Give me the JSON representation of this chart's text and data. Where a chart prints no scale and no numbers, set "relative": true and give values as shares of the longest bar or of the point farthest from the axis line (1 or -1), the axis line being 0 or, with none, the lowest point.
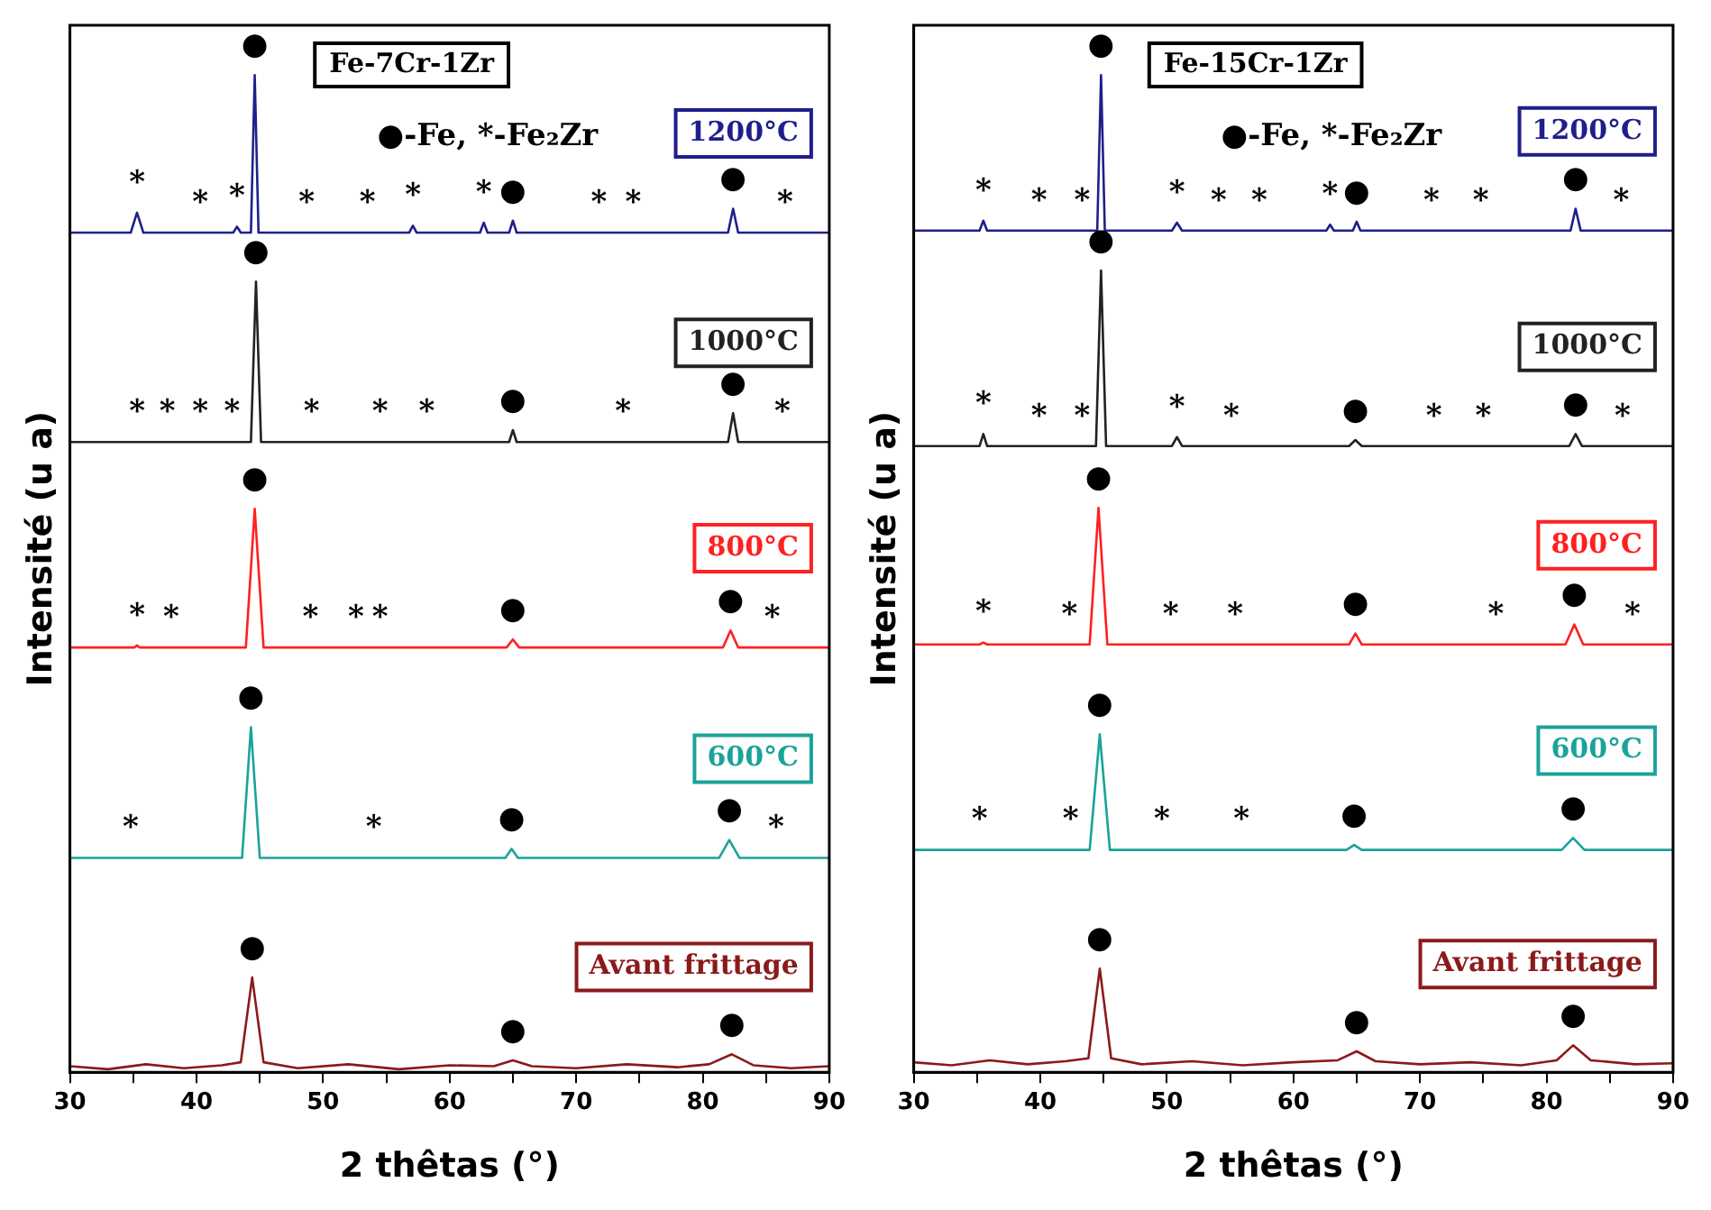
{
  "chart_data": [
    {
      "type": "line",
      "title": "Fe-7Cr-1Zr",
      "xlabel": "2 thêtas (°)",
      "ylabel": "Intensité (u a)",
      "relative": true,
      "xlim": [
        30,
        90
      ],
      "xticks": [
        30,
        {
          "value": 35,
          "label": null
        },
        40,
        {
          "value": 45,
          "label": null
        },
        50,
        {
          "value": 55,
          "label": null
        },
        60,
        {
          "value": 65,
          "label": null
        },
        70,
        {
          "value": 75,
          "label": null
        },
        80,
        {
          "value": 85,
          "label": null
        },
        90
      ],
      "series": [
        {
          "name": "1200°C",
          "color": "#1f1f8c",
          "x": [
            30,
            34.8,
            35.3,
            35.8,
            40.3,
            42.9,
            43.2,
            43.5,
            44.3,
            44.6,
            44.9,
            48.7,
            53.5,
            56.8,
            57.1,
            57.4,
            62.4,
            62.7,
            63.0,
            64.7,
            65.0,
            65.3,
            71.8,
            74.5,
            82.0,
            82.4,
            82.8,
            86.5,
            90
          ],
          "values": [
            0.842,
            0.842,
            0.862,
            0.842,
            0.842,
            0.842,
            0.848,
            0.842,
            0.842,
            1,
            0.842,
            0.842,
            0.842,
            0.842,
            0.849,
            0.842,
            0.842,
            0.852,
            0.842,
            0.842,
            0.854,
            0.842,
            0.842,
            0.842,
            0.842,
            0.866,
            0.842,
            0.842,
            0.842
          ]
        },
        {
          "name": "1000°C",
          "color": "#222222",
          "x": [
            30,
            35.3,
            37.7,
            40.3,
            42.8,
            44.3,
            44.7,
            45.1,
            49.1,
            54.5,
            58.2,
            64.7,
            65.0,
            65.3,
            73.7,
            82.0,
            82.4,
            82.8,
            86.3,
            90
          ],
          "values": [
            0.632,
            0.632,
            0.632,
            0.632,
            0.632,
            0.632,
            0.793,
            0.632,
            0.632,
            0.632,
            0.632,
            0.632,
            0.644,
            0.632,
            0.632,
            0.632,
            0.661,
            0.632,
            0.632,
            0.632
          ]
        },
        {
          "name": "800°C",
          "color": "#ff2020",
          "x": [
            30,
            35.1,
            35.3,
            35.5,
            38.0,
            43.9,
            44.6,
            45.3,
            49.0,
            52.6,
            54.5,
            64.5,
            65.0,
            65.5,
            81.6,
            82.2,
            82.8,
            85.5,
            90
          ],
          "values": [
            0.426,
            0.426,
            0.428,
            0.426,
            0.426,
            0.426,
            0.565,
            0.426,
            0.426,
            0.426,
            0.426,
            0.426,
            0.434,
            0.426,
            0.426,
            0.443,
            0.426,
            0.426,
            0.426
          ]
        },
        {
          "name": "600°C",
          "color": "#1aa39a",
          "x": [
            30,
            34.8,
            43.6,
            44.3,
            45.0,
            54.0,
            64.4,
            64.9,
            65.4,
            81.3,
            82.1,
            82.9,
            85.8,
            90
          ],
          "values": [
            0.215,
            0.215,
            0.215,
            0.346,
            0.215,
            0.215,
            0.215,
            0.224,
            0.215,
            0.215,
            0.233,
            0.215,
            0.215,
            0.215
          ]
        },
        {
          "name": "Avant frittage",
          "color": "#8b1a1a",
          "x": [
            30,
            33,
            36,
            39,
            42,
            43.5,
            44.4,
            45.3,
            48,
            52,
            56,
            60,
            63.5,
            65,
            66.5,
            70,
            74,
            78,
            80.5,
            82.3,
            84,
            87,
            90
          ],
          "values": [
            0.006,
            0.003,
            0.008,
            0.004,
            0.007,
            0.01,
            0.095,
            0.01,
            0.004,
            0.008,
            0.003,
            0.007,
            0.006,
            0.012,
            0.006,
            0.004,
            0.008,
            0.005,
            0.008,
            0.018,
            0.007,
            0.004,
            0.006
          ]
        }
      ],
      "annotations": [
        "●-Fe, *-Fe₂Zr",
        {
          "text": "*",
          "x": 35.3,
          "y": 0.862
        },
        {
          "text": "*",
          "x": 40.3,
          "y": 0.842
        },
        {
          "text": "*",
          "x": 43.2,
          "y": 0.848
        },
        {
          "text": "●",
          "x": 44.6,
          "y": 1
        },
        {
          "text": "*",
          "x": 48.7,
          "y": 0.842
        },
        {
          "text": "*",
          "x": 53.5,
          "y": 0.842
        },
        {
          "text": "*",
          "x": 57.1,
          "y": 0.849
        },
        {
          "text": "*",
          "x": 62.7,
          "y": 0.852
        },
        {
          "text": "●",
          "x": 65.0,
          "y": 0.854
        },
        {
          "text": "*",
          "x": 71.8,
          "y": 0.842
        },
        {
          "text": "*",
          "x": 74.5,
          "y": 0.842
        },
        {
          "text": "●",
          "x": 82.4,
          "y": 0.866
        },
        {
          "text": "*",
          "x": 86.5,
          "y": 0.842
        },
        {
          "text": "*",
          "x": 35.3,
          "y": 0.632
        },
        {
          "text": "*",
          "x": 37.7,
          "y": 0.632
        },
        {
          "text": "*",
          "x": 40.3,
          "y": 0.632
        },
        {
          "text": "*",
          "x": 42.8,
          "y": 0.632
        },
        {
          "text": "●",
          "x": 44.7,
          "y": 0.793
        },
        {
          "text": "*",
          "x": 49.1,
          "y": 0.632
        },
        {
          "text": "*",
          "x": 54.5,
          "y": 0.632
        },
        {
          "text": "*",
          "x": 58.2,
          "y": 0.632
        },
        {
          "text": "●",
          "x": 65.0,
          "y": 0.644
        },
        {
          "text": "*",
          "x": 73.7,
          "y": 0.632
        },
        {
          "text": "●",
          "x": 82.4,
          "y": 0.661
        },
        {
          "text": "*",
          "x": 86.3,
          "y": 0.632
        },
        {
          "text": "*",
          "x": 35.3,
          "y": 0.428
        },
        {
          "text": "*",
          "x": 38.0,
          "y": 0.426
        },
        {
          "text": "●",
          "x": 44.6,
          "y": 0.565
        },
        {
          "text": "*",
          "x": 49.0,
          "y": 0.426
        },
        {
          "text": "*",
          "x": 52.6,
          "y": 0.426
        },
        {
          "text": "*",
          "x": 54.5,
          "y": 0.426
        },
        {
          "text": "●",
          "x": 65.0,
          "y": 0.434
        },
        {
          "text": "●",
          "x": 82.2,
          "y": 0.443
        },
        {
          "text": "*",
          "x": 85.5,
          "y": 0.426
        },
        {
          "text": "*",
          "x": 34.8,
          "y": 0.215
        },
        {
          "text": "●",
          "x": 44.3,
          "y": 0.346
        },
        {
          "text": "*",
          "x": 54.0,
          "y": 0.215
        },
        {
          "text": "●",
          "x": 64.9,
          "y": 0.224
        },
        {
          "text": "●",
          "x": 82.1,
          "y": 0.233
        },
        {
          "text": "*",
          "x": 85.8,
          "y": 0.215
        },
        {
          "text": "●",
          "x": 44.4,
          "y": 0.095
        },
        {
          "text": "●",
          "x": 65,
          "y": 0.012
        },
        {
          "text": "●",
          "x": 82.3,
          "y": 0.018
        }
      ]
    },
    {
      "type": "line",
      "title": "Fe-15Cr-1Zr",
      "xlabel": "2 thêtas (°)",
      "ylabel": "Intensité (u a)",
      "relative": true,
      "xlim": [
        30,
        90
      ],
      "xticks": [
        30,
        {
          "value": 35,
          "label": null
        },
        40,
        {
          "value": 45,
          "label": null
        },
        50,
        {
          "value": 55,
          "label": null
        },
        60,
        {
          "value": 65,
          "label": null
        },
        70,
        {
          "value": 75,
          "label": null
        },
        80,
        {
          "value": 85,
          "label": null
        },
        90
      ],
      "series": [
        {
          "name": "1200°C",
          "color": "#1f1f8c",
          "x": [
            30,
            35.2,
            35.5,
            35.8,
            39.9,
            43.3,
            44.5,
            44.8,
            45.1,
            50.4,
            50.8,
            51.2,
            54.1,
            57.3,
            62.6,
            62.9,
            63.2,
            64.7,
            65.0,
            65.3,
            70.9,
            74.8,
            81.9,
            82.3,
            82.7,
            85.9,
            90
          ],
          "values": [
            0.844,
            0.844,
            0.854,
            0.844,
            0.844,
            0.844,
            0.844,
            1,
            0.844,
            0.844,
            0.852,
            0.844,
            0.844,
            0.844,
            0.844,
            0.85,
            0.844,
            0.844,
            0.853,
            0.844,
            0.844,
            0.844,
            0.844,
            0.866,
            0.844,
            0.844,
            0.844
          ]
        },
        {
          "name": "1000°C",
          "color": "#222222",
          "x": [
            30,
            35.2,
            35.5,
            35.8,
            39.9,
            43.3,
            44.4,
            44.8,
            45.2,
            50.4,
            50.8,
            51.2,
            55.1,
            64.4,
            64.9,
            65.4,
            71.1,
            75.0,
            81.8,
            82.3,
            82.8,
            86.0,
            90
          ],
          "values": [
            0.628,
            0.628,
            0.64,
            0.628,
            0.628,
            0.628,
            0.628,
            0.804,
            0.628,
            0.628,
            0.637,
            0.628,
            0.628,
            0.628,
            0.634,
            0.628,
            0.628,
            0.628,
            0.628,
            0.64,
            0.628,
            0.628,
            0.628
          ]
        },
        {
          "name": "800°C",
          "color": "#ff2020",
          "x": [
            30,
            35.2,
            35.5,
            35.8,
            42.3,
            43.9,
            44.6,
            45.3,
            50.3,
            55.4,
            64.4,
            64.9,
            65.4,
            76.0,
            81.5,
            82.2,
            82.9,
            86.8,
            90
          ],
          "values": [
            0.429,
            0.429,
            0.431,
            0.429,
            0.429,
            0.429,
            0.566,
            0.429,
            0.429,
            0.429,
            0.429,
            0.44,
            0.429,
            0.429,
            0.429,
            0.449,
            0.429,
            0.429,
            0.429
          ]
        },
        {
          "name": "600°C",
          "color": "#1aa39a",
          "x": [
            30,
            35.2,
            42.4,
            43.9,
            44.7,
            45.5,
            49.6,
            55.9,
            64.2,
            64.8,
            65.4,
            81.2,
            82.1,
            83.0,
            90
          ],
          "values": [
            0.223,
            0.223,
            0.223,
            0.223,
            0.339,
            0.223,
            0.223,
            0.223,
            0.223,
            0.228,
            0.223,
            0.223,
            0.235,
            0.223,
            0.223
          ]
        },
        {
          "name": "Avant frittage",
          "color": "#8b1a1a",
          "x": [
            30,
            33,
            36,
            39,
            42,
            43.8,
            44.7,
            45.6,
            48,
            52,
            56,
            60,
            63.5,
            65,
            66.5,
            70,
            74,
            78,
            80.8,
            82.1,
            83.5,
            87,
            90
          ],
          "values": [
            0.01,
            0.007,
            0.012,
            0.008,
            0.011,
            0.014,
            0.104,
            0.014,
            0.008,
            0.011,
            0.007,
            0.01,
            0.012,
            0.021,
            0.011,
            0.008,
            0.01,
            0.007,
            0.012,
            0.027,
            0.012,
            0.008,
            0.009
          ]
        }
      ],
      "annotations": [
        "●-Fe, *-Fe₂Zr",
        {
          "text": "*",
          "x": 35.5,
          "y": 0.854
        },
        {
          "text": "*",
          "x": 39.9,
          "y": 0.844
        },
        {
          "text": "*",
          "x": 43.3,
          "y": 0.844
        },
        {
          "text": "●",
          "x": 44.8,
          "y": 1
        },
        {
          "text": "*",
          "x": 50.8,
          "y": 0.852
        },
        {
          "text": "*",
          "x": 54.1,
          "y": 0.844
        },
        {
          "text": "*",
          "x": 57.3,
          "y": 0.844
        },
        {
          "text": "*",
          "x": 62.9,
          "y": 0.85
        },
        {
          "text": "●",
          "x": 65.0,
          "y": 0.853
        },
        {
          "text": "*",
          "x": 70.9,
          "y": 0.844
        },
        {
          "text": "*",
          "x": 74.8,
          "y": 0.844
        },
        {
          "text": "●",
          "x": 82.3,
          "y": 0.866
        },
        {
          "text": "*",
          "x": 85.9,
          "y": 0.844
        },
        {
          "text": "*",
          "x": 35.5,
          "y": 0.64
        },
        {
          "text": "*",
          "x": 39.9,
          "y": 0.628
        },
        {
          "text": "*",
          "x": 43.3,
          "y": 0.628
        },
        {
          "text": "●",
          "x": 44.8,
          "y": 0.804
        },
        {
          "text": "*",
          "x": 50.8,
          "y": 0.637
        },
        {
          "text": "*",
          "x": 55.1,
          "y": 0.628
        },
        {
          "text": "●",
          "x": 64.9,
          "y": 0.634
        },
        {
          "text": "*",
          "x": 71.1,
          "y": 0.628
        },
        {
          "text": "*",
          "x": 75.0,
          "y": 0.628
        },
        {
          "text": "●",
          "x": 82.3,
          "y": 0.64
        },
        {
          "text": "*",
          "x": 86.0,
          "y": 0.628
        },
        {
          "text": "*",
          "x": 35.5,
          "y": 0.431
        },
        {
          "text": "*",
          "x": 42.3,
          "y": 0.429
        },
        {
          "text": "●",
          "x": 44.6,
          "y": 0.566
        },
        {
          "text": "*",
          "x": 50.3,
          "y": 0.429
        },
        {
          "text": "*",
          "x": 55.4,
          "y": 0.429
        },
        {
          "text": "●",
          "x": 64.9,
          "y": 0.44
        },
        {
          "text": "*",
          "x": 76.0,
          "y": 0.429
        },
        {
          "text": "●",
          "x": 82.2,
          "y": 0.449
        },
        {
          "text": "*",
          "x": 86.8,
          "y": 0.429
        },
        {
          "text": "*",
          "x": 35.2,
          "y": 0.223
        },
        {
          "text": "*",
          "x": 42.4,
          "y": 0.223
        },
        {
          "text": "●",
          "x": 44.7,
          "y": 0.339
        },
        {
          "text": "*",
          "x": 49.6,
          "y": 0.223
        },
        {
          "text": "*",
          "x": 55.9,
          "y": 0.223
        },
        {
          "text": "●",
          "x": 64.8,
          "y": 0.228
        },
        {
          "text": "●",
          "x": 82.1,
          "y": 0.235
        },
        {
          "text": "●",
          "x": 44.7,
          "y": 0.104
        },
        {
          "text": "●",
          "x": 65,
          "y": 0.021
        },
        {
          "text": "●",
          "x": 82.1,
          "y": 0.027
        }
      ]
    }
  ]
}
